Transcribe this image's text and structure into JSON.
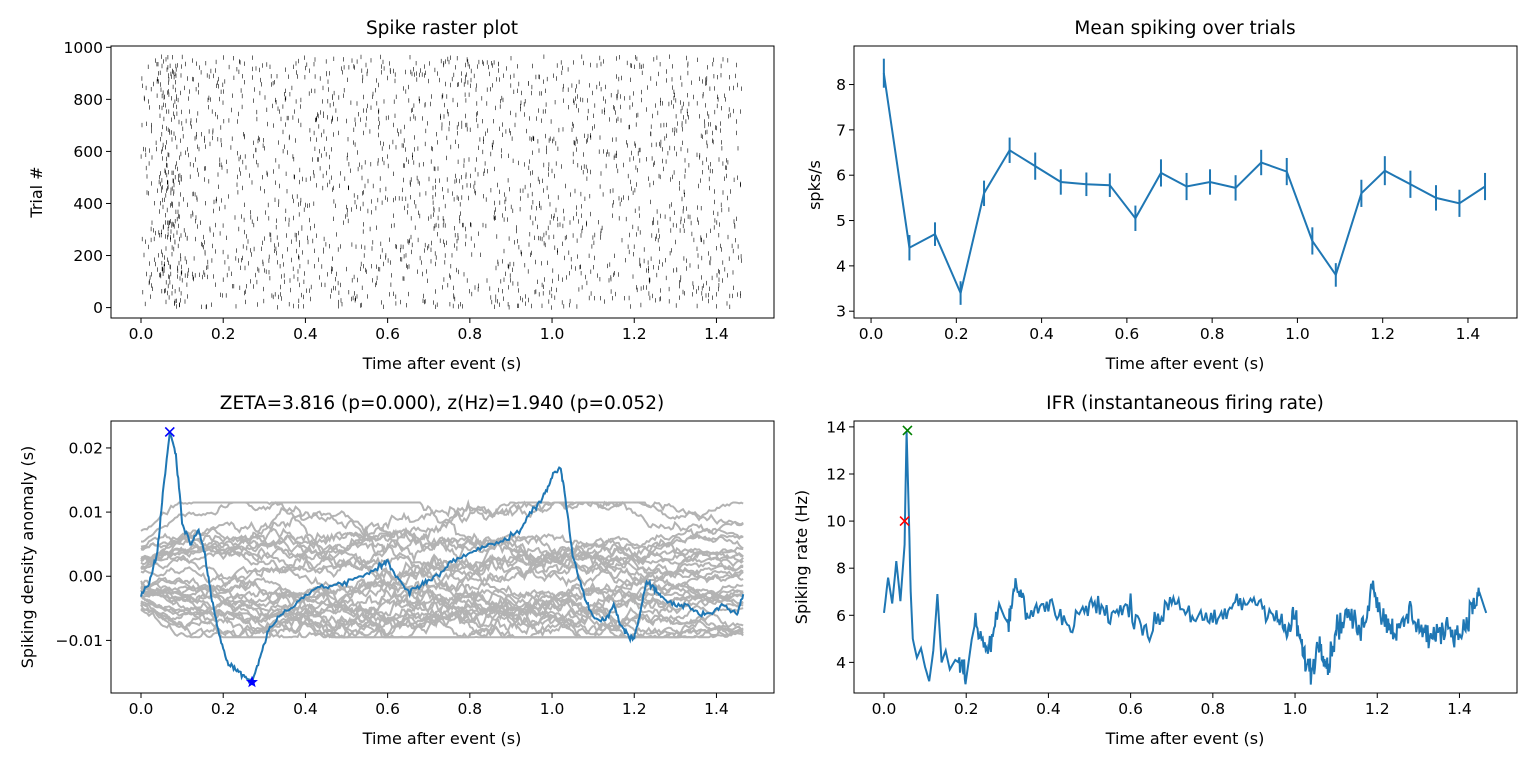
{
  "chart_data": [
    {
      "type": "scatter",
      "title": "Spike raster plot",
      "xlabel": "Time after event (s)",
      "ylabel": "Trial #",
      "xlim": [
        -0.073,
        1.54
      ],
      "ylim": [
        -40,
        1005
      ],
      "xticks": [
        0.0,
        0.2,
        0.4,
        0.6,
        0.8,
        1.0,
        1.2,
        1.4
      ],
      "yticks": [
        0,
        200,
        400,
        600,
        800,
        1000
      ],
      "xticklabels": [
        "0.0",
        "0.2",
        "0.4",
        "0.6",
        "0.8",
        "1.0",
        "1.2",
        "1.4"
      ],
      "yticklabels": [
        "0",
        "200",
        "400",
        "600",
        "800",
        "1000"
      ],
      "trials": 965,
      "time_range": [
        0.0,
        1.465
      ],
      "spike_color": "#000000"
    },
    {
      "type": "line",
      "title": "Mean spiking over trials",
      "xlabel": "Time after event (s)",
      "ylabel": "spks/s",
      "xlim": [
        -0.04,
        1.515
      ],
      "ylim": [
        2.85,
        8.85
      ],
      "xticks": [
        0.0,
        0.2,
        0.4,
        0.6,
        0.8,
        1.0,
        1.2,
        1.4
      ],
      "yticks": [
        3,
        4,
        5,
        6,
        7,
        8
      ],
      "xticklabels": [
        "0.0",
        "0.2",
        "0.4",
        "0.6",
        "0.8",
        "1.0",
        "1.2",
        "1.4"
      ],
      "yticklabels": [
        "3",
        "4",
        "5",
        "6",
        "7",
        "8"
      ],
      "color": "#1f77b4",
      "x": [
        0.03,
        0.09,
        0.15,
        0.21,
        0.265,
        0.325,
        0.385,
        0.445,
        0.505,
        0.56,
        0.62,
        0.68,
        0.74,
        0.795,
        0.855,
        0.915,
        0.975,
        1.035,
        1.09,
        1.15,
        1.205,
        1.265,
        1.325,
        1.38,
        1.44
      ],
      "values": [
        8.25,
        4.4,
        4.7,
        3.4,
        5.6,
        6.55,
        6.2,
        5.85,
        5.8,
        5.78,
        5.05,
        6.05,
        5.75,
        5.85,
        5.72,
        6.28,
        6.08,
        4.55,
        3.8,
        5.6,
        6.1,
        5.8,
        5.5,
        5.38,
        5.75
      ],
      "errors": [
        0.32,
        0.28,
        0.26,
        0.26,
        0.28,
        0.28,
        0.3,
        0.28,
        0.26,
        0.26,
        0.28,
        0.3,
        0.3,
        0.28,
        0.28,
        0.28,
        0.3,
        0.3,
        0.26,
        0.3,
        0.32,
        0.3,
        0.28,
        0.3,
        0.3
      ]
    },
    {
      "type": "line",
      "title": "ZETA=3.816 (p=0.000), z(Hz)=1.940 (p=0.052)",
      "xlabel": "Time after event (s)",
      "ylabel": "Spiking density anomaly (s)",
      "xlim": [
        -0.073,
        1.54
      ],
      "ylim": [
        -0.0182,
        0.0242
      ],
      "xticks": [
        0.0,
        0.2,
        0.4,
        0.6,
        0.8,
        1.0,
        1.2,
        1.4
      ],
      "yticks": [
        -0.01,
        0.0,
        0.01,
        0.02
      ],
      "xticklabels": [
        "0.0",
        "0.2",
        "0.4",
        "0.6",
        "0.8",
        "1.0",
        "1.2",
        "1.4"
      ],
      "yticklabels": [
        "−0.01",
        "0.00",
        "0.01",
        "0.02"
      ],
      "main_color": "#1f77b4",
      "null_color": "#b3b3b3",
      "null_band": [
        -0.0095,
        0.0115
      ],
      "main_series": {
        "x": [
          0.0,
          0.02,
          0.04,
          0.055,
          0.07,
          0.085,
          0.1,
          0.12,
          0.14,
          0.155,
          0.17,
          0.19,
          0.21,
          0.23,
          0.25,
          0.27,
          0.29,
          0.31,
          0.34,
          0.38,
          0.42,
          0.46,
          0.5,
          0.54,
          0.58,
          0.6,
          0.62,
          0.65,
          0.68,
          0.7,
          0.73,
          0.76,
          0.8,
          0.84,
          0.88,
          0.92,
          0.95,
          0.98,
          1.0,
          1.02,
          1.03,
          1.05,
          1.08,
          1.1,
          1.13,
          1.15,
          1.17,
          1.19,
          1.2,
          1.21,
          1.23,
          1.25,
          1.27,
          1.3,
          1.33,
          1.36,
          1.39,
          1.42,
          1.45,
          1.465
        ],
        "values": [
          -0.003,
          -0.001,
          0.004,
          0.014,
          0.0225,
          0.019,
          0.0085,
          0.005,
          0.0075,
          0.0035,
          -0.003,
          -0.009,
          -0.0135,
          -0.0145,
          -0.0155,
          -0.0165,
          -0.0125,
          -0.0085,
          -0.006,
          -0.004,
          -0.002,
          -0.0015,
          -0.001,
          0.0,
          0.0015,
          0.0025,
          0.0,
          -0.0025,
          -0.0015,
          -0.0005,
          0.0005,
          0.0025,
          0.0035,
          0.005,
          0.0055,
          0.007,
          0.01,
          0.0125,
          0.0155,
          0.017,
          0.0135,
          0.0035,
          -0.0035,
          -0.0065,
          -0.007,
          -0.0045,
          -0.008,
          -0.0095,
          -0.0098,
          -0.007,
          -0.0005,
          -0.002,
          -0.0035,
          -0.0045,
          -0.0045,
          -0.006,
          -0.0055,
          -0.0045,
          -0.006,
          -0.0028
        ]
      },
      "markers": [
        {
          "x": 0.07,
          "y": 0.0225,
          "symbol": "x",
          "color": "#0000ff"
        },
        {
          "x": 0.27,
          "y": -0.0165,
          "symbol": "star",
          "color": "#0000ff"
        }
      ]
    },
    {
      "type": "line",
      "title": "IFR (instantaneous firing rate)",
      "xlabel": "Time after event (s)",
      "ylabel": "Spiking rate (Hz)",
      "xlim": [
        -0.073,
        1.54
      ],
      "ylim": [
        2.7,
        14.25
      ],
      "xticks": [
        0.0,
        0.2,
        0.4,
        0.6,
        0.8,
        1.0,
        1.2,
        1.4
      ],
      "yticks": [
        4,
        6,
        8,
        10,
        12,
        14
      ],
      "xticklabels": [
        "0.0",
        "0.2",
        "0.4",
        "0.6",
        "0.8",
        "1.0",
        "1.2",
        "1.4"
      ],
      "yticklabels": [
        "4",
        "6",
        "8",
        "10",
        "12",
        "14"
      ],
      "color": "#1f77b4",
      "series": {
        "x": [
          0.0,
          0.01,
          0.02,
          0.03,
          0.04,
          0.05,
          0.055,
          0.06,
          0.065,
          0.07,
          0.08,
          0.09,
          0.1,
          0.11,
          0.12,
          0.13,
          0.14,
          0.15,
          0.16,
          0.18,
          0.2,
          0.22,
          0.25,
          0.28,
          0.3,
          0.32,
          0.35,
          0.4,
          0.45,
          0.5,
          0.55,
          0.6,
          0.65,
          0.7,
          0.75,
          0.8,
          0.85,
          0.9,
          0.95,
          0.98,
          1.0,
          1.02,
          1.04,
          1.06,
          1.08,
          1.1,
          1.13,
          1.16,
          1.19,
          1.21,
          1.23,
          1.25,
          1.28,
          1.31,
          1.34,
          1.37,
          1.4,
          1.43,
          1.45,
          1.465
        ],
        "values": [
          6.1,
          7.6,
          6.5,
          8.3,
          6.6,
          9.0,
          13.8,
          10.5,
          7.0,
          5.0,
          4.2,
          4.6,
          3.8,
          3.2,
          4.5,
          6.9,
          4.0,
          4.5,
          3.7,
          4.3,
          3.3,
          5.8,
          4.4,
          6.5,
          5.6,
          7.4,
          6.0,
          6.5,
          5.6,
          6.5,
          6.0,
          6.3,
          5.2,
          6.8,
          6.0,
          5.6,
          6.4,
          6.7,
          6.1,
          5.2,
          6.0,
          4.3,
          3.6,
          5.0,
          3.8,
          5.4,
          6.1,
          5.2,
          7.4,
          6.0,
          5.6,
          5.2,
          6.2,
          5.3,
          5.0,
          5.6,
          5.1,
          6.3,
          6.9,
          6.1
        ]
      },
      "markers": [
        {
          "x": 0.057,
          "y": 13.85,
          "symbol": "x",
          "color": "#008000"
        },
        {
          "x": 0.05,
          "y": 10.0,
          "symbol": "x",
          "color": "#ff0000"
        }
      ]
    }
  ]
}
